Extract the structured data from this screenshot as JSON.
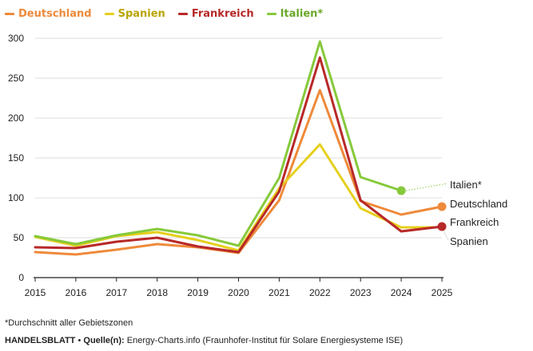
{
  "colors": {
    "Deutschland": "#ee8a3a",
    "Spanien": "#e6cf1c",
    "Frankreich": "#b82828",
    "Italien": "#86c93b",
    "grid": "#dddddd",
    "axis": "#222222",
    "connector": "#bbbbbb",
    "connector_italien": "#86c93b"
  },
  "chart_data": {
    "type": "line",
    "x": [
      2015,
      2016,
      2017,
      2018,
      2019,
      2020,
      2021,
      2022,
      2023,
      2024,
      2025
    ],
    "series": [
      {
        "name": "Deutschland",
        "legend_label": "Deutschland",
        "end_label": "Deutschland",
        "color": "#ee8a3a",
        "values": [
          32,
          29,
          35,
          42,
          38,
          31,
          97,
          235,
          96,
          79,
          89
        ]
      },
      {
        "name": "Spanien",
        "legend_label": "Spanien",
        "end_label": "Spanien",
        "color": "#e6cf1c",
        "values": [
          51,
          40,
          52,
          57,
          47,
          34,
          112,
          167,
          87,
          63,
          63
        ]
      },
      {
        "name": "Frankreich",
        "legend_label": "Frankreich",
        "end_label": "Frankreich",
        "color": "#b82828",
        "values": [
          38,
          37,
          45,
          50,
          39,
          32,
          108,
          276,
          97,
          58,
          64
        ]
      },
      {
        "name": "Italien",
        "legend_label": "Italien*",
        "end_label": "Italien*",
        "color": "#86c93b",
        "values": [
          52,
          42,
          53,
          61,
          53,
          40,
          125,
          296,
          126,
          109,
          null
        ]
      }
    ],
    "ylim": [
      0,
      300
    ],
    "yticks": [
      0,
      50,
      100,
      150,
      200,
      250,
      300
    ],
    "grid": true,
    "legend_position": "top-left",
    "title": "",
    "xlabel": "",
    "ylabel": ""
  },
  "footnote": "*Durchschnitt aller Gebietszonen",
  "source": {
    "brand": "HANDELSBLATT",
    "separator": "•",
    "label": "Quelle(n):",
    "text": "Energy-Charts.info (Fraunhofer-Institut für Solare Energiesysteme ISE)"
  }
}
